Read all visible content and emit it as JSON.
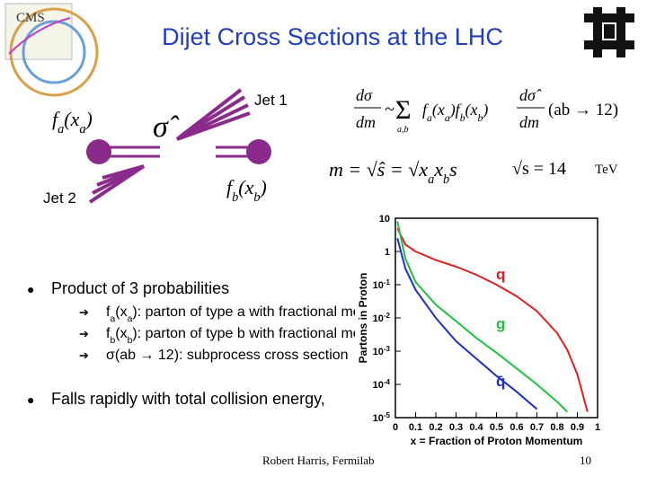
{
  "header": {
    "title": "Dijet Cross Sections at the LHC",
    "logo_text": "CMS"
  },
  "diagram": {
    "jet1": "Jet 1",
    "jet2": "Jet 2",
    "fa": [
      "f",
      {
        "sub": "a"
      },
      "(x",
      {
        "sub": "a"
      },
      ")"
    ],
    "sigma": "σ̂",
    "fb": [
      "f",
      {
        "sub": "b"
      },
      "(x",
      {
        "sub": "b"
      },
      ")"
    ]
  },
  "equations": {
    "eq1": {
      "num": "dσ",
      "den": "dm",
      "tilde": "~",
      "sum": "Σ",
      "sum_sub": "a,b",
      "product": [
        "f",
        {
          "sub": "a"
        },
        "(x",
        {
          "sub": "a"
        },
        ")f",
        {
          "sub": "b"
        },
        "(x",
        {
          "sub": "b"
        },
        ")"
      ],
      "num2": "dσ̂",
      "den2": "dm",
      "process": "(ab → 12)"
    },
    "eq2": [
      "m = √ŝ = √x",
      {
        "sub": "a"
      },
      "x",
      {
        "sub": "b"
      },
      "s"
    ],
    "eq3": {
      "energy": "√s = 14",
      "unit": "TeV"
    }
  },
  "bullets": [
    {
      "text": "Product of 3 probabilities",
      "items": [
        [
          "f",
          {
            "sub": "a"
          },
          "(x",
          {
            "sub": "a"
          },
          "): parton of type a with fractional mo"
        ],
        [
          "f",
          {
            "sub": "b"
          },
          "(x",
          {
            "sub": "b"
          },
          "): parton of type b with fractional mo"
        ],
        [
          "σ(ab → 12): subprocess cross section"
        ]
      ]
    },
    {
      "text": "Falls rapidly with total collision energy,",
      "items": []
    }
  ],
  "footer": {
    "author": "Robert Harris, Fermilab",
    "page": "10"
  },
  "chart_data": {
    "type": "line",
    "log_y": true,
    "xlabel": "x = Fraction of Proton Momentum",
    "ylabel": "Partons in Proton",
    "x": [
      0.01,
      0.05,
      0.1,
      0.2,
      0.3,
      0.4,
      0.5,
      0.6,
      0.7,
      0.8,
      0.85,
      0.9,
      0.95
    ],
    "series": [
      {
        "name": "q",
        "color": "#e02020",
        "values": [
          5,
          1.6,
          1.0,
          0.55,
          0.35,
          0.2,
          0.1,
          0.045,
          0.016,
          0.0035,
          0.0011,
          0.0002,
          1.5e-05
        ]
      },
      {
        "name": "g",
        "color": "#20c040",
        "values": [
          8,
          0.6,
          0.12,
          0.025,
          0.008,
          0.0025,
          0.0009,
          0.0003,
          0.0001,
          3e-05,
          1.5e-05,
          null,
          null
        ]
      },
      {
        "name": "q̄",
        "color": "#2030c0",
        "values": [
          2.5,
          0.3,
          0.07,
          0.01,
          0.002,
          0.0006,
          0.00018,
          6e-05,
          1.8e-05,
          null,
          null,
          null,
          null
        ]
      }
    ],
    "xlim": [
      0,
      1
    ],
    "xticks": [
      0,
      0.1,
      0.2,
      0.3,
      0.4,
      0.5,
      0.6,
      0.7,
      0.8,
      0.9,
      1
    ],
    "ylim": [
      1e-05,
      10
    ],
    "yticks": [
      10,
      1,
      {
        "value": 0.1,
        "label": "10",
        "sup": "-1"
      },
      {
        "value": 0.01,
        "label": "10",
        "sup": "-2"
      },
      {
        "value": 0.001,
        "label": "10",
        "sup": "-3"
      },
      {
        "value": 0.0001,
        "label": "10",
        "sup": "-4"
      },
      {
        "value": 1e-05,
        "label": "10",
        "sup": "-5"
      }
    ]
  }
}
